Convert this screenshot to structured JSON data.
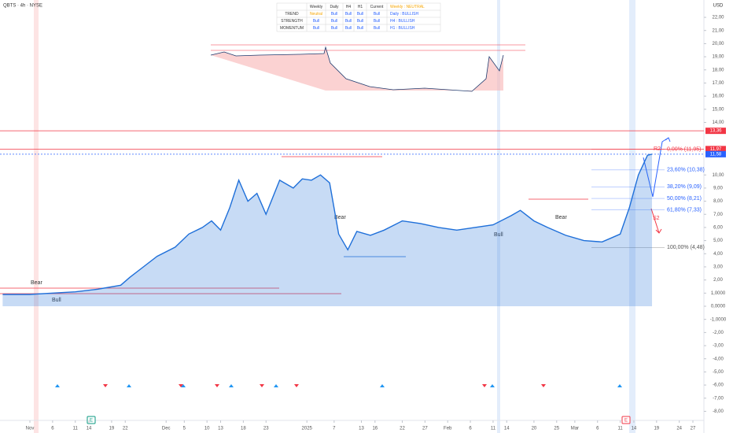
{
  "chart_data": {
    "type": "line",
    "title": "QBTS · 4h · NYSE",
    "currency": "USD",
    "x": [
      -6,
      0,
      5,
      10,
      15,
      20,
      22,
      25,
      28,
      32,
      35,
      38,
      40,
      42,
      44,
      46,
      48,
      50,
      52,
      55,
      58,
      60,
      62,
      64,
      66,
      68,
      70,
      72,
      75,
      78,
      82,
      86,
      90,
      94,
      98,
      102,
      106,
      108,
      111,
      114,
      118,
      122,
      126,
      128,
      130,
      132,
      134,
      136,
      137
    ],
    "values": [
      0.9,
      0.9,
      1.0,
      1.1,
      1.3,
      1.6,
      2.2,
      3.0,
      3.8,
      4.5,
      5.5,
      6.0,
      6.5,
      5.8,
      7.5,
      9.6,
      8.0,
      8.6,
      7.0,
      9.6,
      9.0,
      9.7,
      9.6,
      10.0,
      9.4,
      5.5,
      4.3,
      5.7,
      5.4,
      5.8,
      6.5,
      6.3,
      6.0,
      5.8,
      6.0,
      6.2,
      6.9,
      7.3,
      6.5,
      6.0,
      5.4,
      5.0,
      4.9,
      5.2,
      5.5,
      7.5,
      10.0,
      11.5,
      11.58
    ],
    "color": "#1e6fd9",
    "xlim": [
      -6,
      152
    ],
    "xticks": [
      {
        "value": 0,
        "label": "Nov"
      },
      {
        "value": 5,
        "label": "6"
      },
      {
        "value": 10,
        "label": "11"
      },
      {
        "value": 13,
        "label": "14"
      },
      {
        "value": 18,
        "label": "19"
      },
      {
        "value": 21,
        "label": "22"
      },
      {
        "value": 30,
        "label": "Dec"
      },
      {
        "value": 34,
        "label": "5"
      },
      {
        "value": 39,
        "label": "10"
      },
      {
        "value": 42,
        "label": "13"
      },
      {
        "value": 47,
        "label": "18"
      },
      {
        "value": 52,
        "label": "23"
      },
      {
        "value": 61,
        "label": "2025"
      },
      {
        "value": 67,
        "label": "7"
      },
      {
        "value": 73,
        "label": "13"
      },
      {
        "value": 76,
        "label": "16"
      },
      {
        "value": 82,
        "label": "22"
      },
      {
        "value": 87,
        "label": "27"
      },
      {
        "value": 92,
        "label": "Feb"
      },
      {
        "value": 97,
        "label": "6"
      },
      {
        "value": 102,
        "label": "11"
      },
      {
        "value": 105,
        "label": "14"
      },
      {
        "value": 111,
        "label": "20"
      },
      {
        "value": 116,
        "label": "25"
      },
      {
        "value": 120,
        "label": "Mar"
      },
      {
        "value": 125,
        "label": "6"
      },
      {
        "value": 130,
        "label": "11"
      },
      {
        "value": 133,
        "label": "14"
      },
      {
        "value": 138,
        "label": "19"
      },
      {
        "value": 143,
        "label": "24"
      },
      {
        "value": 146,
        "label": "27"
      }
    ],
    "ylim": [
      -9.5,
      23.3
    ],
    "yticks": [
      {
        "value": 22,
        "label": "22,00"
      },
      {
        "value": 21,
        "label": "21,00"
      },
      {
        "value": 20,
        "label": "20,00"
      },
      {
        "value": 19,
        "label": "19,00"
      },
      {
        "value": 18,
        "label": "18,00"
      },
      {
        "value": 17,
        "label": "17,00"
      },
      {
        "value": 16,
        "label": "16,00"
      },
      {
        "value": 15,
        "label": "15,00"
      },
      {
        "value": 14,
        "label": "14,00"
      },
      {
        "value": 10,
        "label": "10,00"
      },
      {
        "value": 9,
        "label": "9,00"
      },
      {
        "value": 8,
        "label": "8,00"
      },
      {
        "value": 7,
        "label": "7,00"
      },
      {
        "value": 6,
        "label": "6,00"
      },
      {
        "value": 5,
        "label": "5,00"
      },
      {
        "value": 4,
        "label": "4,00"
      },
      {
        "value": 3,
        "label": "3,00"
      },
      {
        "value": 2,
        "label": "2,00"
      },
      {
        "value": 1,
        "label": "1,0000"
      },
      {
        "value": 0,
        "label": "0,0000"
      },
      {
        "value": -1,
        "label": "-1,0000"
      },
      {
        "value": -2,
        "label": "-2,00"
      },
      {
        "value": -3,
        "label": "-3,00"
      },
      {
        "value": -4,
        "label": "-4,00"
      },
      {
        "value": -5,
        "label": "-5,00"
      },
      {
        "value": -6,
        "label": "-6,00"
      },
      {
        "value": -7,
        "label": "-7,00"
      },
      {
        "value": -8,
        "label": "-8,00"
      }
    ],
    "grid": false,
    "price_levels": [
      {
        "value": 13.36,
        "label": "13,36",
        "color": "#f23645"
      },
      {
        "value": 11.97,
        "label": "11,97",
        "color": "#f23645"
      },
      {
        "value": 11.58,
        "label": "11,58",
        "color": "#2962ff"
      }
    ],
    "fib_levels": [
      {
        "value": 11.95,
        "label": "0,00% (11,95)",
        "color": "#f23645"
      },
      {
        "value": 10.38,
        "label": "23,60% (10,38)",
        "color": "#2962ff"
      },
      {
        "value": 9.09,
        "label": "38,20% (9,09)",
        "color": "#2962ff"
      },
      {
        "value": 8.21,
        "label": "50,00% (8,21)",
        "color": "#2962ff"
      },
      {
        "value": 7.33,
        "label": "61,80% (7,33)",
        "color": "#2962ff"
      },
      {
        "value": 4.48,
        "label": "100,00% (4,48)",
        "color": "#555555"
      }
    ],
    "annotations": [
      "Bear",
      "Bull",
      "Bear",
      "Bull",
      "Bear",
      "R2",
      "S2"
    ],
    "events": [
      "E",
      "E"
    ]
  },
  "table": {
    "header": [
      "Weekly",
      "Daily",
      "H4",
      "H1",
      "Current"
    ],
    "rows": [
      {
        "label": "TREND",
        "cells": [
          "Neutral",
          "Bull",
          "Bull",
          "Bull",
          "Bull"
        ]
      },
      {
        "label": "STRENGTH",
        "cells": [
          "Bull",
          "Bull",
          "Bull",
          "Bull",
          "Bull"
        ]
      },
      {
        "label": "MOMENTUM",
        "cells": [
          "Bull",
          "Bull",
          "Bull",
          "Bull",
          "Bull"
        ]
      }
    ],
    "summary": [
      "Weekly : NEUTRAL",
      "Daily : BULLISH",
      "H4 : BULLISH",
      "H1 : BULLISH"
    ]
  }
}
